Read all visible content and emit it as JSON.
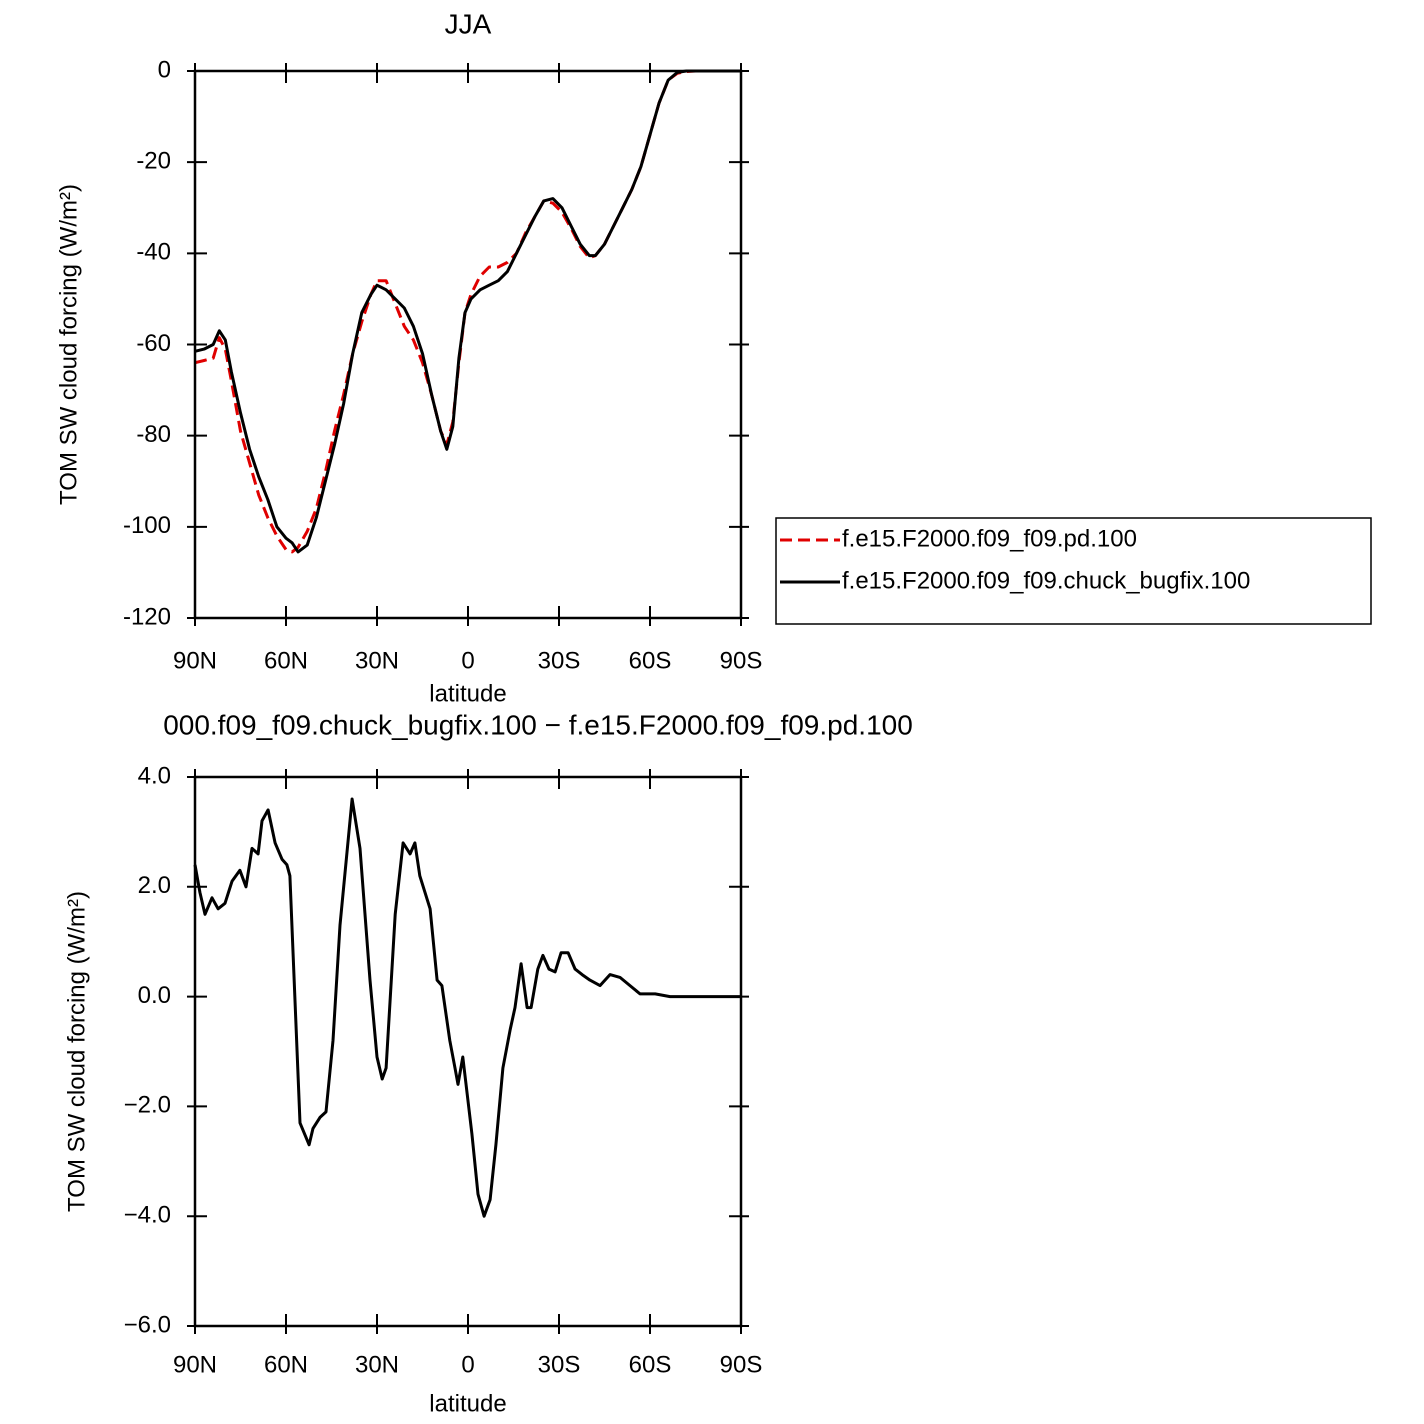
{
  "chart_data": [
    {
      "type": "line",
      "title": "JJA",
      "xlabel": "latitude",
      "ylabel": "TOM SW cloud forcing (W/m²)",
      "xlim": [
        90,
        -90
      ],
      "ylim": [
        -120,
        0
      ],
      "xticks": [
        {
          "value": 90,
          "label": "90N"
        },
        {
          "value": 60,
          "label": "60N"
        },
        {
          "value": 30,
          "label": "30N"
        },
        0,
        {
          "value": -30,
          "label": "30S"
        },
        {
          "value": -60,
          "label": "60S"
        },
        {
          "value": -90,
          "label": "90S"
        }
      ],
      "yticks": [
        0,
        -20,
        -40,
        -60,
        -80,
        -100,
        -120
      ],
      "legend": "right",
      "x": [
        90,
        87,
        84,
        82,
        80,
        78,
        75,
        72,
        69,
        66,
        63,
        60,
        58,
        56,
        53,
        50,
        47,
        44,
        41,
        38,
        35,
        32,
        30,
        27,
        24,
        21,
        18,
        15,
        12,
        9,
        7,
        5,
        3,
        1,
        -1,
        -4,
        -7,
        -10,
        -13,
        -16,
        -19,
        -22,
        -25,
        -28,
        -31,
        -34,
        -37,
        -40,
        -42,
        -45,
        -48,
        -51,
        -54,
        -57,
        -60,
        -63,
        -66,
        -69,
        -72,
        -75,
        -80,
        -85,
        -90
      ],
      "series": [
        {
          "name": "f.e15.F2000.f09_f09.pd.100",
          "color": "#e00000",
          "linestyle": "dashed",
          "values": [
            -64,
            -63.5,
            -63,
            -58.5,
            -61,
            -68,
            -79,
            -86,
            -93,
            -98,
            -102,
            -105,
            -105.5,
            -104.5,
            -101,
            -96,
            -88,
            -79,
            -71,
            -62,
            -55,
            -49,
            -46,
            -46,
            -51,
            -56,
            -59,
            -64,
            -71,
            -79,
            -82,
            -77,
            -64,
            -53,
            -49,
            -45,
            -43,
            -43,
            -42,
            -40,
            -35.5,
            -32,
            -28.5,
            -29,
            -31,
            -34.5,
            -38.5,
            -41,
            -40.5,
            -38,
            -34,
            -30,
            -26,
            -21,
            -14,
            -7,
            -2,
            -0.5,
            -0.1,
            0,
            0,
            0,
            0
          ]
        },
        {
          "name": "f.e15.F2000.f09_f09.chuck_bugfix.100",
          "color": "#000000",
          "linestyle": "solid",
          "values": [
            -61.5,
            -61,
            -60,
            -57,
            -59,
            -66,
            -75,
            -83,
            -89,
            -94,
            -100,
            -102.5,
            -103.5,
            -105.5,
            -104,
            -98,
            -90,
            -82,
            -73,
            -62,
            -53,
            -49,
            -47,
            -48,
            -50,
            -52,
            -56,
            -62,
            -71,
            -79,
            -83,
            -78,
            -63,
            -53,
            -50,
            -48,
            -47,
            -46,
            -44,
            -40,
            -36,
            -32,
            -28.5,
            -28,
            -30,
            -34,
            -38,
            -40.5,
            -40.5,
            -38,
            -34,
            -30,
            -26,
            -21,
            -14,
            -7,
            -2,
            -0.3,
            0,
            0,
            0,
            0,
            0
          ]
        }
      ]
    },
    {
      "type": "line",
      "title": "000.f09_f09.chuck_bugfix.100 − f.e15.F2000.f09_f09.pd.100",
      "xlabel": "latitude",
      "ylabel": "TOM SW cloud forcing (W/m²)",
      "xlim": [
        90,
        -90
      ],
      "ylim": [
        -6,
        4
      ],
      "xticks": [
        {
          "value": 90,
          "label": "90N"
        },
        {
          "value": 60,
          "label": "60N"
        },
        {
          "value": 30,
          "label": "30N"
        },
        0,
        {
          "value": -30,
          "label": "30S"
        },
        {
          "value": -60,
          "label": "60S"
        },
        {
          "value": -90,
          "label": "90S"
        }
      ],
      "yticks": [
        {
          "value": 4,
          "label": "4.0"
        },
        {
          "value": 2,
          "label": "2.0"
        },
        {
          "value": 0,
          "label": "0.0"
        },
        {
          "value": -2,
          "label": "−2.0"
        },
        {
          "value": -4,
          "label": "−4.0"
        },
        {
          "value": -6,
          "label": "−6.0"
        }
      ],
      "color": "#000000",
      "x": [
        90,
        88.4,
        86.7,
        84.4,
        82.4,
        80.1,
        77.8,
        75.2,
        73.2,
        71.2,
        69.2,
        67.9,
        65.9,
        63.6,
        61.3,
        59.7,
        58.7,
        55.4,
        52.4,
        51.1,
        48.8,
        46.8,
        44.5,
        42.2,
        38.2,
        35.6,
        32.3,
        30,
        28.3,
        27,
        24,
        21.4,
        19.1,
        17.5,
        15.9,
        12.5,
        10.2,
        8.6,
        6,
        4.3,
        3.3,
        1.7,
        -1.3,
        -3.3,
        -5.3,
        -7.3,
        -9.2,
        -11.5,
        -13.9,
        -15.5,
        -17.5,
        -19.5,
        -20.8,
        -23,
        -24.7,
        -26.7,
        -28.7,
        -30.7,
        -33,
        -35.3,
        -37.6,
        -40.2,
        -43.5,
        -46.8,
        -50.1,
        -53.4,
        -56.7,
        -61.7,
        -66.6,
        -90
      ],
      "values": [
        2.4,
        1.9,
        1.5,
        1.8,
        1.6,
        1.7,
        2.1,
        2.3,
        2,
        2.7,
        2.6,
        3.2,
        3.4,
        2.8,
        2.5,
        2.4,
        2.2,
        -2.3,
        -2.7,
        -2.4,
        -2.2,
        -2.1,
        -0.8,
        1.3,
        3.6,
        2.7,
        0.3,
        -1.1,
        -1.5,
        -1.3,
        1.5,
        2.8,
        2.6,
        2.8,
        2.2,
        1.6,
        0.3,
        0.2,
        -0.8,
        -1.3,
        -1.6,
        -1.1,
        -2.5,
        -3.6,
        -4,
        -3.7,
        -2.7,
        -1.3,
        -0.6,
        -0.2,
        0.6,
        -0.2,
        -0.2,
        0.5,
        0.75,
        0.5,
        0.45,
        0.8,
        0.8,
        0.5,
        0.4,
        0.3,
        0.2,
        0.4,
        0.35,
        0.2,
        0.05,
        0.05,
        0,
        0
      ]
    }
  ]
}
